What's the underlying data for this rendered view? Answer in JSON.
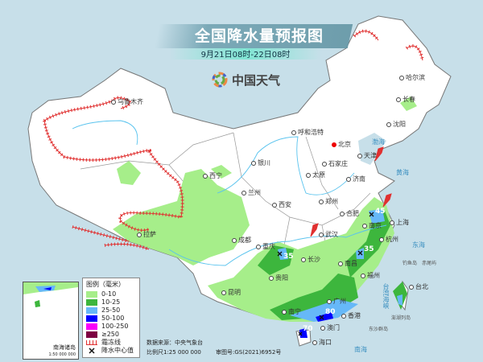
{
  "header": {
    "title": "全国降水量预报图",
    "subtitle": "9月21日08时-22日08时",
    "logo_text": "中国天气"
  },
  "legend": {
    "title": "图例（毫米）",
    "items": [
      {
        "label": "0-10",
        "color": "#a6ee8a"
      },
      {
        "label": "10-25",
        "color": "#3db63d"
      },
      {
        "label": "25-50",
        "color": "#66b8f8"
      },
      {
        "label": "50-100",
        "color": "#0000fe"
      },
      {
        "label": "100-250",
        "color": "#fa00fa"
      },
      {
        "label": "≥250",
        "color": "#7d0042"
      }
    ],
    "frost_line": "霜冻线",
    "rain_center": "降水中心值"
  },
  "footer": {
    "source": "数据来源：中央气象台",
    "scale": "比例尺1:25 000 000",
    "review_no": "审图号:GS(2021)6952号"
  },
  "inset": {
    "label": "南海诸岛",
    "scale": "1:50 000 000"
  },
  "cities": [
    "乌鲁木齐",
    "拉萨",
    "西宁",
    "兰州",
    "银川",
    "呼和浩特",
    "北京",
    "天津",
    "石家庄",
    "太原",
    "济南",
    "郑州",
    "西安",
    "成都",
    "重庆",
    "贵阳",
    "昆明",
    "南宁",
    "广州",
    "香港",
    "澳门",
    "海口",
    "长沙",
    "武汉",
    "合肥",
    "南京",
    "上海",
    "杭州",
    "南昌",
    "福州",
    "台北",
    "沈阳",
    "长春",
    "哈尔滨"
  ],
  "rain_centers": [
    "45",
    "35",
    "35",
    "80",
    "70"
  ],
  "seas": [
    "渤海",
    "黄海",
    "东海",
    "南海",
    "台湾海峡",
    "钓鱼岛",
    "赤尾屿",
    "澎湖列岛",
    "东沙群岛"
  ],
  "colors": {
    "sea": "#c7dfe9",
    "land": "#ffffff",
    "frost": "#e03030",
    "river": "#59c3ee"
  }
}
